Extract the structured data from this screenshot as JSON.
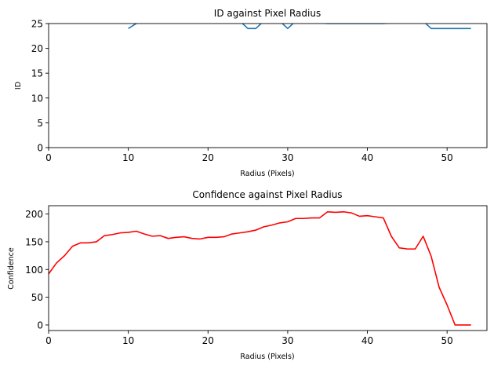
{
  "chart_data": [
    {
      "type": "line",
      "title": "ID against Pixel Radius",
      "xlabel": "Radius (Pixels)",
      "ylabel": "ID",
      "xlim": [
        0,
        55
      ],
      "ylim": [
        0,
        25
      ],
      "xticks": [
        0,
        10,
        20,
        30,
        40,
        50
      ],
      "yticks": [
        0,
        5,
        10,
        15,
        20,
        25
      ],
      "series": [
        {
          "color": "#1f77b4",
          "x": [
            10,
            11,
            12,
            24,
            25,
            26,
            27,
            29,
            30,
            31,
            35,
            36,
            41,
            42,
            47,
            48,
            49,
            50,
            51,
            52,
            53
          ],
          "y": [
            24,
            25,
            25.5,
            25.5,
            24,
            24,
            25.5,
            25.5,
            24,
            25.5,
            25,
            25,
            25,
            25,
            25.5,
            24,
            24,
            24,
            24,
            24,
            24
          ]
        }
      ]
    },
    {
      "type": "line",
      "title": "Confidence against Pixel Radius",
      "xlabel": "Radius (Pixels)",
      "ylabel": "Confidence",
      "xlim": [
        0,
        55
      ],
      "ylim": [
        -10,
        215
      ],
      "xticks": [
        0,
        10,
        20,
        30,
        40,
        50
      ],
      "yticks": [
        0,
        50,
        100,
        150,
        200
      ],
      "series": [
        {
          "color": "#ff0000",
          "x": [
            0,
            1,
            2,
            3,
            4,
            5,
            6,
            7,
            8,
            9,
            10,
            11,
            12,
            13,
            14,
            15,
            16,
            17,
            18,
            19,
            20,
            21,
            22,
            23,
            24,
            25,
            26,
            27,
            28,
            29,
            30,
            31,
            32,
            33,
            34,
            35,
            36,
            37,
            38,
            39,
            40,
            41,
            42,
            43,
            44,
            45,
            46,
            47,
            48,
            49,
            50,
            51,
            52,
            53
          ],
          "y": [
            92,
            112,
            125,
            142,
            148,
            148,
            150,
            161,
            163,
            166,
            167,
            169,
            164,
            160,
            161,
            156,
            158,
            159,
            156,
            155,
            158,
            158,
            159,
            164,
            166,
            168,
            171,
            177,
            180,
            184,
            186,
            192,
            192,
            193,
            193,
            204,
            203,
            204,
            202,
            196,
            197,
            195,
            193,
            160,
            139,
            137,
            137,
            160,
            124,
            68,
            36,
            0,
            0,
            0
          ]
        }
      ]
    }
  ]
}
